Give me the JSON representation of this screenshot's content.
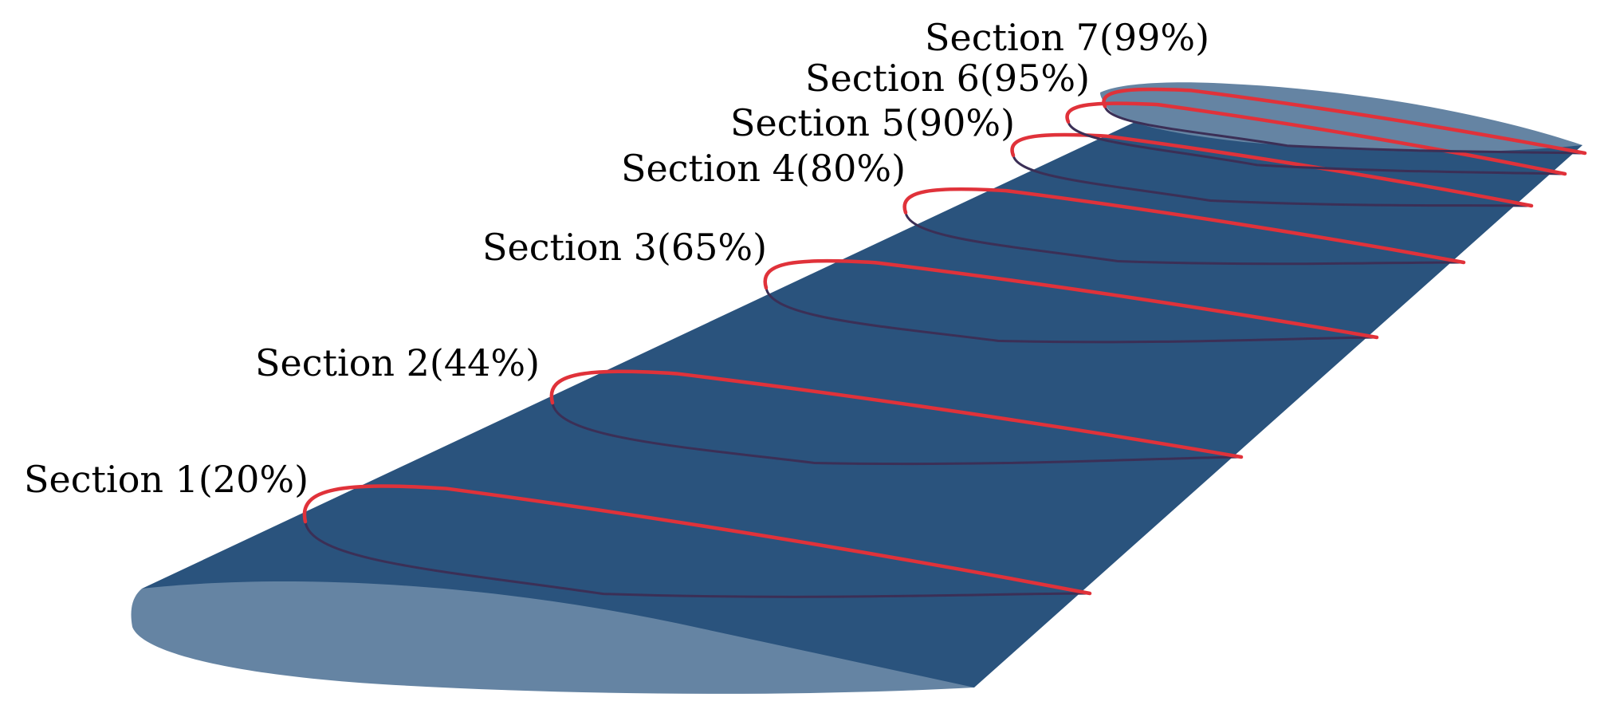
{
  "colors": {
    "wing_surface": "#2a537d",
    "root_cap": "#6584a3",
    "tip_cap": "#6584a3",
    "section_curve": "#e0323a",
    "section_shadow": "#3b2f56",
    "label_text": "#000000"
  },
  "sections": [
    {
      "id": 1,
      "label": "Section 1(20%)",
      "span_percent": 20
    },
    {
      "id": 2,
      "label": "Section 2(44%)",
      "span_percent": 44
    },
    {
      "id": 3,
      "label": "Section 3(65%)",
      "span_percent": 65
    },
    {
      "id": 4,
      "label": "Section 4(80%)",
      "span_percent": 80
    },
    {
      "id": 5,
      "label": "Section 5(90%)",
      "span_percent": 90
    },
    {
      "id": 6,
      "label": "Section 6(95%)",
      "span_percent": 95
    },
    {
      "id": 7,
      "label": "Section 7(99%)",
      "span_percent": 99
    }
  ]
}
